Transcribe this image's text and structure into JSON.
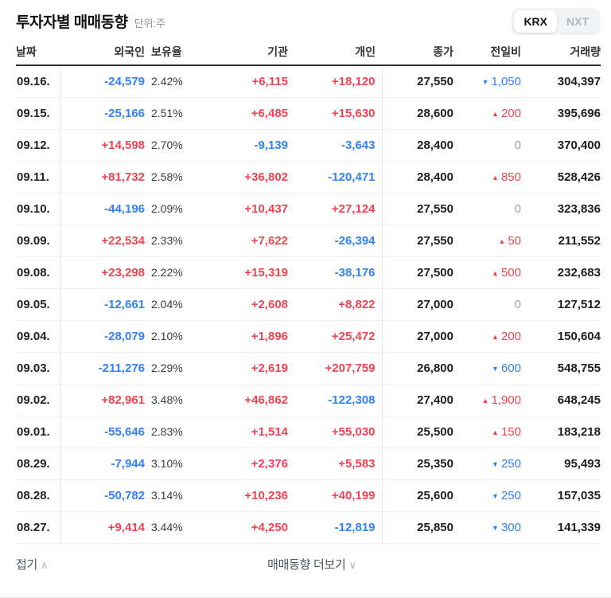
{
  "header": {
    "title": "투자자별 매매동향",
    "unit": "단위:주",
    "exchange_tabs": [
      {
        "label": "KRX",
        "active": true
      },
      {
        "label": "NXT",
        "active": false
      }
    ]
  },
  "table": {
    "columns": [
      "날짜",
      "외국인",
      "보유율",
      "기관",
      "개인",
      "종가",
      "전일비",
      "거래량"
    ],
    "rows": [
      {
        "date": "09.16.",
        "foreign": "-24,579",
        "hold": "2.42%",
        "inst": "+6,115",
        "indiv": "+18,120",
        "close": "27,550",
        "change": {
          "dir": "down",
          "value": "1,050"
        },
        "volume": "304,397"
      },
      {
        "date": "09.15.",
        "foreign": "-25,166",
        "hold": "2.51%",
        "inst": "+6,485",
        "indiv": "+15,630",
        "close": "28,600",
        "change": {
          "dir": "up",
          "value": "200"
        },
        "volume": "395,696"
      },
      {
        "date": "09.12.",
        "foreign": "+14,598",
        "hold": "2.70%",
        "inst": "-9,139",
        "indiv": "-3,643",
        "close": "28,400",
        "change": {
          "dir": "flat",
          "value": "0"
        },
        "volume": "370,400"
      },
      {
        "date": "09.11.",
        "foreign": "+81,732",
        "hold": "2.58%",
        "inst": "+36,802",
        "indiv": "-120,471",
        "close": "28,400",
        "change": {
          "dir": "up",
          "value": "850"
        },
        "volume": "528,426"
      },
      {
        "date": "09.10.",
        "foreign": "-44,196",
        "hold": "2.09%",
        "inst": "+10,437",
        "indiv": "+27,124",
        "close": "27,550",
        "change": {
          "dir": "flat",
          "value": "0"
        },
        "volume": "323,836"
      },
      {
        "date": "09.09.",
        "foreign": "+22,534",
        "hold": "2.33%",
        "inst": "+7,622",
        "indiv": "-26,394",
        "close": "27,550",
        "change": {
          "dir": "up",
          "value": "50"
        },
        "volume": "211,552"
      },
      {
        "date": "09.08.",
        "foreign": "+23,298",
        "hold": "2.22%",
        "inst": "+15,319",
        "indiv": "-38,176",
        "close": "27,500",
        "change": {
          "dir": "up",
          "value": "500"
        },
        "volume": "232,683"
      },
      {
        "date": "09.05.",
        "foreign": "-12,661",
        "hold": "2.04%",
        "inst": "+2,608",
        "indiv": "+8,822",
        "close": "27,000",
        "change": {
          "dir": "flat",
          "value": "0"
        },
        "volume": "127,512"
      },
      {
        "date": "09.04.",
        "foreign": "-28,079",
        "hold": "2.10%",
        "inst": "+1,896",
        "indiv": "+25,472",
        "close": "27,000",
        "change": {
          "dir": "up",
          "value": "200"
        },
        "volume": "150,604"
      },
      {
        "date": "09.03.",
        "foreign": "-211,276",
        "hold": "2.29%",
        "inst": "+2,619",
        "indiv": "+207,759",
        "close": "26,800",
        "change": {
          "dir": "down",
          "value": "600"
        },
        "volume": "548,755"
      },
      {
        "date": "09.02.",
        "foreign": "+82,961",
        "hold": "3.48%",
        "inst": "+46,862",
        "indiv": "-122,308",
        "close": "27,400",
        "change": {
          "dir": "up",
          "value": "1,900"
        },
        "volume": "648,245"
      },
      {
        "date": "09.01.",
        "foreign": "-55,646",
        "hold": "2.83%",
        "inst": "+1,514",
        "indiv": "+55,030",
        "close": "25,500",
        "change": {
          "dir": "up",
          "value": "150"
        },
        "volume": "183,218"
      },
      {
        "date": "08.29.",
        "foreign": "-7,944",
        "hold": "3.10%",
        "inst": "+2,376",
        "indiv": "+5,583",
        "close": "25,350",
        "change": {
          "dir": "down",
          "value": "250"
        },
        "volume": "95,493"
      },
      {
        "date": "08.28.",
        "foreign": "-50,782",
        "hold": "3.14%",
        "inst": "+10,236",
        "indiv": "+40,199",
        "close": "25,600",
        "change": {
          "dir": "down",
          "value": "250"
        },
        "volume": "157,035"
      },
      {
        "date": "08.27.",
        "foreign": "+9,414",
        "hold": "3.44%",
        "inst": "+4,250",
        "indiv": "-12,819",
        "close": "25,850",
        "change": {
          "dir": "down",
          "value": "300"
        },
        "volume": "141,339"
      }
    ]
  },
  "footer": {
    "collapse_label": "접기",
    "collapse_chevron": "∧",
    "more_label": "매매동향 더보기",
    "more_chevron": "∨"
  },
  "colors": {
    "up": "#f04452",
    "down": "#3182f6",
    "flat": "#9aa0a6"
  }
}
